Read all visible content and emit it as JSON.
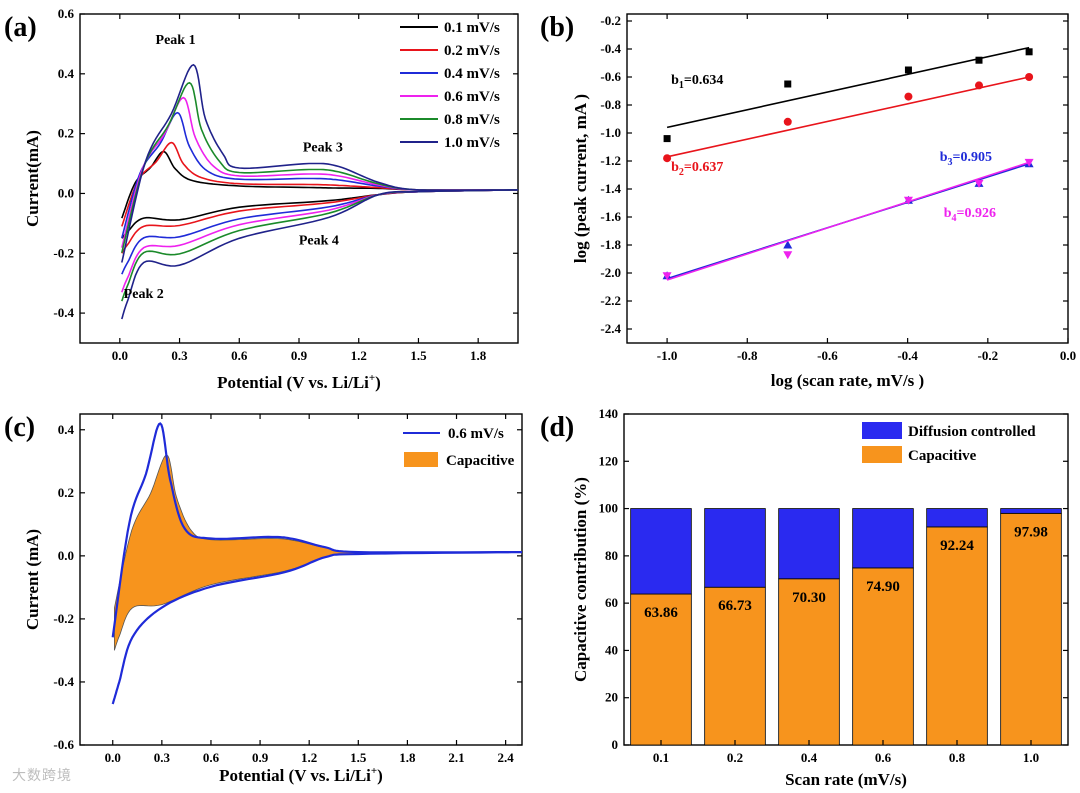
{
  "watermark": "大数跨境",
  "chart_data": [
    {
      "panel": "(a)",
      "type": "line",
      "xlabel_main": "Potential (V vs. Li/Li",
      "xlabel_sup": "+",
      "xlabel_close": ")",
      "ylabel": "Current(mA)",
      "xlim": [
        -0.2,
        2.0
      ],
      "ylim": [
        -0.5,
        0.6
      ],
      "xticks": [
        "0.0",
        "0.3",
        "0.6",
        "0.9",
        "1.2",
        "1.5",
        "1.8"
      ],
      "yticks": [
        "-0.4",
        "-0.2",
        "0.0",
        "0.2",
        "0.4",
        "0.6"
      ],
      "legend_position": "top-right",
      "series": [
        {
          "name": "0.1 mV/s",
          "color": "#000000",
          "peak_anodic": [
            0.22,
            0.14
          ],
          "peak_cathodic": [
            0.01,
            -0.15
          ],
          "hump": 0.02
        },
        {
          "name": "0.2 mV/s",
          "color": "#e8141b",
          "peak_anodic": [
            0.26,
            0.17
          ],
          "peak_cathodic": [
            0.01,
            -0.2
          ],
          "hump": 0.03
        },
        {
          "name": "0.4 mV/s",
          "color": "#1f2bd8",
          "peak_anodic": [
            0.29,
            0.27
          ],
          "peak_cathodic": [
            0.01,
            -0.27
          ],
          "hump": 0.05
        },
        {
          "name": "0.6 mV/s",
          "color": "#ee22ee",
          "peak_anodic": [
            0.32,
            0.32
          ],
          "peak_cathodic": [
            0.01,
            -0.33
          ],
          "hump": 0.065
        },
        {
          "name": "0.8 mV/s",
          "color": "#1b8a2a",
          "peak_anodic": [
            0.35,
            0.37
          ],
          "peak_cathodic": [
            0.01,
            -0.36
          ],
          "hump": 0.08
        },
        {
          "name": "1.0 mV/s",
          "color": "#20228a",
          "peak_anodic": [
            0.37,
            0.43
          ],
          "peak_cathodic": [
            0.01,
            -0.42
          ],
          "hump": 0.1
        }
      ],
      "annotations": [
        {
          "text": "Peak 1",
          "x": 0.28,
          "y": 0.5
        },
        {
          "text": "Peak 3",
          "x": 1.02,
          "y": 0.14
        },
        {
          "text": "Peak 2",
          "x": 0.12,
          "y": -0.35
        },
        {
          "text": "Peak 4",
          "x": 1.0,
          "y": -0.17
        }
      ]
    },
    {
      "panel": "(b)",
      "type": "scatter",
      "xlabel": "log (scan rate, mV/s )",
      "ylabel": "log (peak current, mA )",
      "xlim": [
        -1.1,
        0.0
      ],
      "ylim": [
        -2.5,
        -0.15
      ],
      "xticks": [
        "-1.0",
        "-0.8",
        "-0.6",
        "-0.4",
        "-0.2",
        "0.0"
      ],
      "yticks": [
        "-0.2",
        "-0.4",
        "-0.6",
        "-0.8",
        "-1.0",
        "-1.2",
        "-1.4",
        "-1.6",
        "-1.8",
        "-2.0",
        "-2.2",
        "-2.4"
      ],
      "x": [
        -1.0,
        -0.699,
        -0.398,
        -0.222,
        -0.097
      ],
      "series": [
        {
          "label_b": "b",
          "label_sub": "1",
          "label_val": "=0.634",
          "color": "#000000",
          "marker": "square",
          "values": [
            -1.04,
            -0.65,
            -0.55,
            -0.48,
            -0.42
          ],
          "fit": [
            [
              -1.0,
              -0.96
            ],
            [
              -0.097,
              -0.39
            ]
          ],
          "label_pos": [
            -0.99,
            -0.65
          ]
        },
        {
          "label_b": "b",
          "label_sub": "2",
          "label_val": "=0.637",
          "color": "#e8141b",
          "marker": "circle",
          "values": [
            -1.18,
            -0.92,
            -0.74,
            -0.66,
            -0.6
          ],
          "fit": [
            [
              -1.0,
              -1.17
            ],
            [
              -0.097,
              -0.6
            ]
          ],
          "label_pos": [
            -0.99,
            -1.27
          ]
        },
        {
          "label_b": "b",
          "label_sub": "3",
          "label_val": "=0.905",
          "color": "#1f2bd8",
          "marker": "triangle-up",
          "values": [
            -2.02,
            -1.8,
            -1.48,
            -1.36,
            -1.22
          ],
          "fit": [
            [
              -1.0,
              -2.04
            ],
            [
              -0.097,
              -1.22
            ]
          ],
          "label_pos": [
            -0.32,
            -1.2
          ]
        },
        {
          "label_b": "b",
          "label_sub": "4",
          "label_val": "=0.926",
          "color": "#ee22ee",
          "marker": "triangle-down",
          "values": [
            -2.02,
            -1.87,
            -1.48,
            -1.36,
            -1.21
          ],
          "fit": [
            [
              -1.0,
              -2.05
            ],
            [
              -0.097,
              -1.21
            ]
          ],
          "label_pos": [
            -0.31,
            -1.6
          ]
        }
      ]
    },
    {
      "panel": "(c)",
      "type": "area",
      "xlabel_main": "Potential (V vs. Li/Li",
      "xlabel_sup": "+",
      "xlabel_close": ")",
      "ylabel": "Current (mA)",
      "xlim": [
        -0.2,
        2.5
      ],
      "ylim": [
        -0.6,
        0.45
      ],
      "xticks": [
        "0.0",
        "0.3",
        "0.6",
        "0.9",
        "1.2",
        "1.5",
        "1.8",
        "2.1",
        "2.4"
      ],
      "yticks": [
        "-0.6",
        "-0.4",
        "-0.2",
        "0.0",
        "0.2",
        "0.4"
      ],
      "legend_position": "top-right",
      "legend": [
        {
          "name": "0.6 mV/s",
          "color": "#1f2bd8",
          "kind": "line"
        },
        {
          "name": "Capacitive",
          "color": "#f7941d",
          "kind": "patch"
        }
      ],
      "cv_peak_anodic": [
        0.29,
        0.42
      ],
      "cv_min": [
        0.0,
        -0.47
      ],
      "capacitive_peak": [
        0.33,
        0.32
      ],
      "capacitive_min": [
        0.01,
        -0.3
      ]
    },
    {
      "panel": "(d)",
      "type": "bar",
      "xlabel": "Scan rate (mV/s)",
      "ylabel": "Capacitive contribution (%)",
      "ylim": [
        0,
        140
      ],
      "yticks": [
        "0",
        "20",
        "40",
        "60",
        "80",
        "100",
        "120",
        "140"
      ],
      "categories": [
        "0.1",
        "0.2",
        "0.4",
        "0.6",
        "0.8",
        "1.0"
      ],
      "series": [
        {
          "name": "Capacitive",
          "color": "#f7941d",
          "values": [
            63.86,
            66.73,
            70.3,
            74.9,
            92.24,
            97.98
          ]
        },
        {
          "name": "Diffusion controlled",
          "color": "#2a2af0",
          "values": [
            36.14,
            33.27,
            29.7,
            25.1,
            7.76,
            2.02
          ]
        }
      ],
      "data_labels": [
        "63.86",
        "66.73",
        "70.30",
        "74.90",
        "92.24",
        "97.98"
      ],
      "legend_order": [
        "Diffusion controlled",
        "Capacitive"
      ],
      "legend_position": "top-right"
    }
  ]
}
